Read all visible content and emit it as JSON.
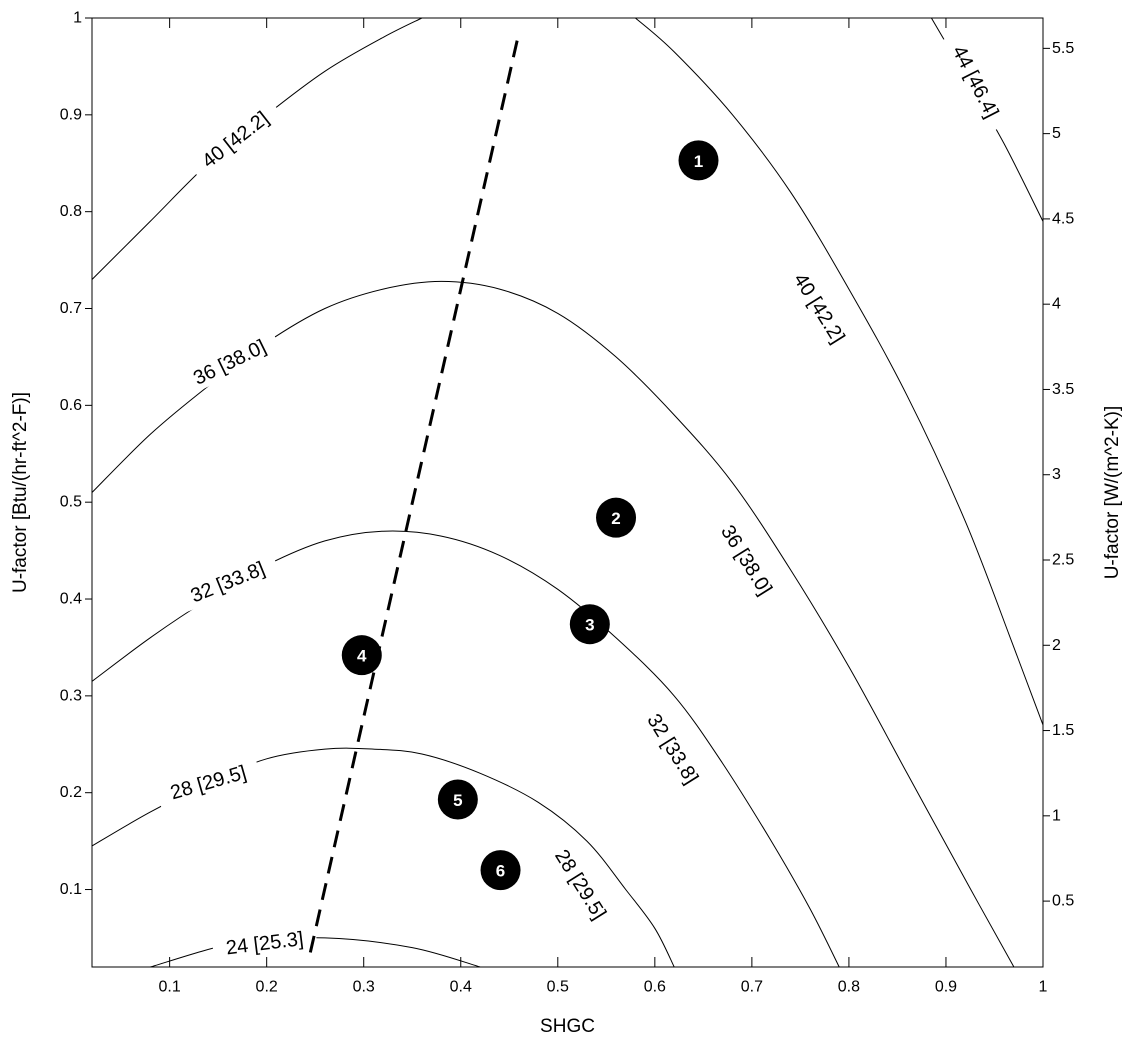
{
  "chart_data": {
    "type": "contour",
    "xlabel": "SHGC",
    "ylabel_left": "U-factor [Btu/(hr-ft^2-F)]",
    "ylabel_right": "U-factor [W/(m^2-K)]",
    "xlim": [
      0.02,
      1.0
    ],
    "ylim_left": [
      0.02,
      1.0
    ],
    "ylim_right": [
      0.1136,
      5.678
    ],
    "x_ticks": [
      "0.1",
      "0.2",
      "0.3",
      "0.4",
      "0.5",
      "0.6",
      "0.7",
      "0.8",
      "0.9",
      "1"
    ],
    "y_left_ticks": [
      "0.1",
      "0.2",
      "0.3",
      "0.4",
      "0.5",
      "0.6",
      "0.7",
      "0.8",
      "0.9",
      "1"
    ],
    "y_right_ticks": [
      "0.5",
      "1",
      "1.5",
      "2",
      "2.5",
      "3",
      "3.5",
      "4",
      "4.5",
      "5",
      "5.5"
    ],
    "contours": [
      {
        "level": 24,
        "label": "24 [25.3]",
        "points": [
          [
            0.08,
            0.02
          ],
          [
            0.17,
            0.045
          ],
          [
            0.26,
            0.05
          ],
          [
            0.35,
            0.04
          ],
          [
            0.42,
            0.02
          ]
        ]
      },
      {
        "level": 28,
        "label": "28 [29.5]",
        "points": [
          [
            0.02,
            0.145
          ],
          [
            0.08,
            0.18
          ],
          [
            0.14,
            0.21
          ],
          [
            0.2,
            0.235
          ],
          [
            0.26,
            0.245
          ],
          [
            0.31,
            0.245
          ],
          [
            0.36,
            0.24
          ],
          [
            0.42,
            0.22
          ],
          [
            0.48,
            0.19
          ],
          [
            0.53,
            0.15
          ],
          [
            0.57,
            0.1
          ],
          [
            0.6,
            0.06
          ],
          [
            0.62,
            0.02
          ]
        ]
      },
      {
        "level": 32,
        "label": "32 [33.8]",
        "points": [
          [
            0.02,
            0.315
          ],
          [
            0.08,
            0.36
          ],
          [
            0.14,
            0.4
          ],
          [
            0.2,
            0.435
          ],
          [
            0.26,
            0.46
          ],
          [
            0.32,
            0.47
          ],
          [
            0.38,
            0.465
          ],
          [
            0.44,
            0.445
          ],
          [
            0.5,
            0.41
          ],
          [
            0.56,
            0.36
          ],
          [
            0.62,
            0.3
          ],
          [
            0.67,
            0.23
          ],
          [
            0.72,
            0.15
          ],
          [
            0.76,
            0.08
          ],
          [
            0.79,
            0.02
          ]
        ]
      },
      {
        "level": 36,
        "label": "36 [38.0]",
        "points": [
          [
            0.02,
            0.51
          ],
          [
            0.08,
            0.57
          ],
          [
            0.14,
            0.62
          ],
          [
            0.2,
            0.665
          ],
          [
            0.26,
            0.7
          ],
          [
            0.32,
            0.72
          ],
          [
            0.38,
            0.728
          ],
          [
            0.44,
            0.72
          ],
          [
            0.5,
            0.695
          ],
          [
            0.56,
            0.65
          ],
          [
            0.62,
            0.59
          ],
          [
            0.68,
            0.52
          ],
          [
            0.74,
            0.43
          ],
          [
            0.8,
            0.33
          ],
          [
            0.86,
            0.22
          ],
          [
            0.92,
            0.11
          ],
          [
            0.97,
            0.02
          ]
        ]
      },
      {
        "level": 40,
        "label": "40 [42.2]",
        "points": [
          [
            0.02,
            0.73
          ],
          [
            0.08,
            0.79
          ],
          [
            0.14,
            0.85
          ],
          [
            0.2,
            0.9
          ],
          [
            0.26,
            0.945
          ],
          [
            0.32,
            0.98
          ],
          [
            0.36,
            1.0
          ]
        ]
      },
      {
        "level": 40,
        "label": "40 [42.2]",
        "points": [
          [
            0.58,
            1.0
          ],
          [
            0.62,
            0.965
          ],
          [
            0.68,
            0.9
          ],
          [
            0.74,
            0.82
          ],
          [
            0.8,
            0.72
          ],
          [
            0.86,
            0.61
          ],
          [
            0.92,
            0.48
          ],
          [
            0.97,
            0.35
          ],
          [
            1.0,
            0.27
          ]
        ]
      },
      {
        "level": 44,
        "label": "44 [46.4]",
        "points": [
          [
            0.885,
            1.0
          ],
          [
            0.92,
            0.94
          ],
          [
            0.96,
            0.87
          ],
          [
            1.0,
            0.79
          ]
        ]
      }
    ],
    "dashed_line": [
      [
        0.245,
        0.035
      ],
      [
        0.46,
        0.985
      ]
    ],
    "markers": [
      {
        "label": "1",
        "shgc": 0.645,
        "u": 0.853
      },
      {
        "label": "2",
        "shgc": 0.56,
        "u": 0.484
      },
      {
        "label": "3",
        "shgc": 0.533,
        "u": 0.374
      },
      {
        "label": "4",
        "shgc": 0.298,
        "u": 0.342
      },
      {
        "label": "5",
        "shgc": 0.397,
        "u": 0.193
      },
      {
        "label": "6",
        "shgc": 0.441,
        "u": 0.12
      }
    ],
    "contour_labels": [
      {
        "text": "24 [25.3]",
        "shgc": 0.198,
        "u": 0.044,
        "angle": -7
      },
      {
        "text": "28 [29.5]",
        "shgc": 0.14,
        "u": 0.21,
        "angle": -16
      },
      {
        "text": "32 [33.8]",
        "shgc": 0.16,
        "u": 0.417,
        "angle": -22
      },
      {
        "text": "36 [38.0]",
        "shgc": 0.162,
        "u": 0.644,
        "angle": -26
      },
      {
        "text": "40 [42.2]",
        "shgc": 0.168,
        "u": 0.874,
        "angle": -38
      },
      {
        "text": "40 [42.2]",
        "shgc": 0.769,
        "u": 0.7,
        "angle": 58
      },
      {
        "text": "36 [38.0]",
        "shgc": 0.694,
        "u": 0.44,
        "angle": 58
      },
      {
        "text": "32 [33.8]",
        "shgc": 0.618,
        "u": 0.245,
        "angle": 58
      },
      {
        "text": "28 [29.5]",
        "shgc": 0.523,
        "u": 0.105,
        "angle": 58
      },
      {
        "text": "44 [46.4]",
        "shgc": 0.93,
        "u": 0.934,
        "angle": 63
      }
    ]
  }
}
